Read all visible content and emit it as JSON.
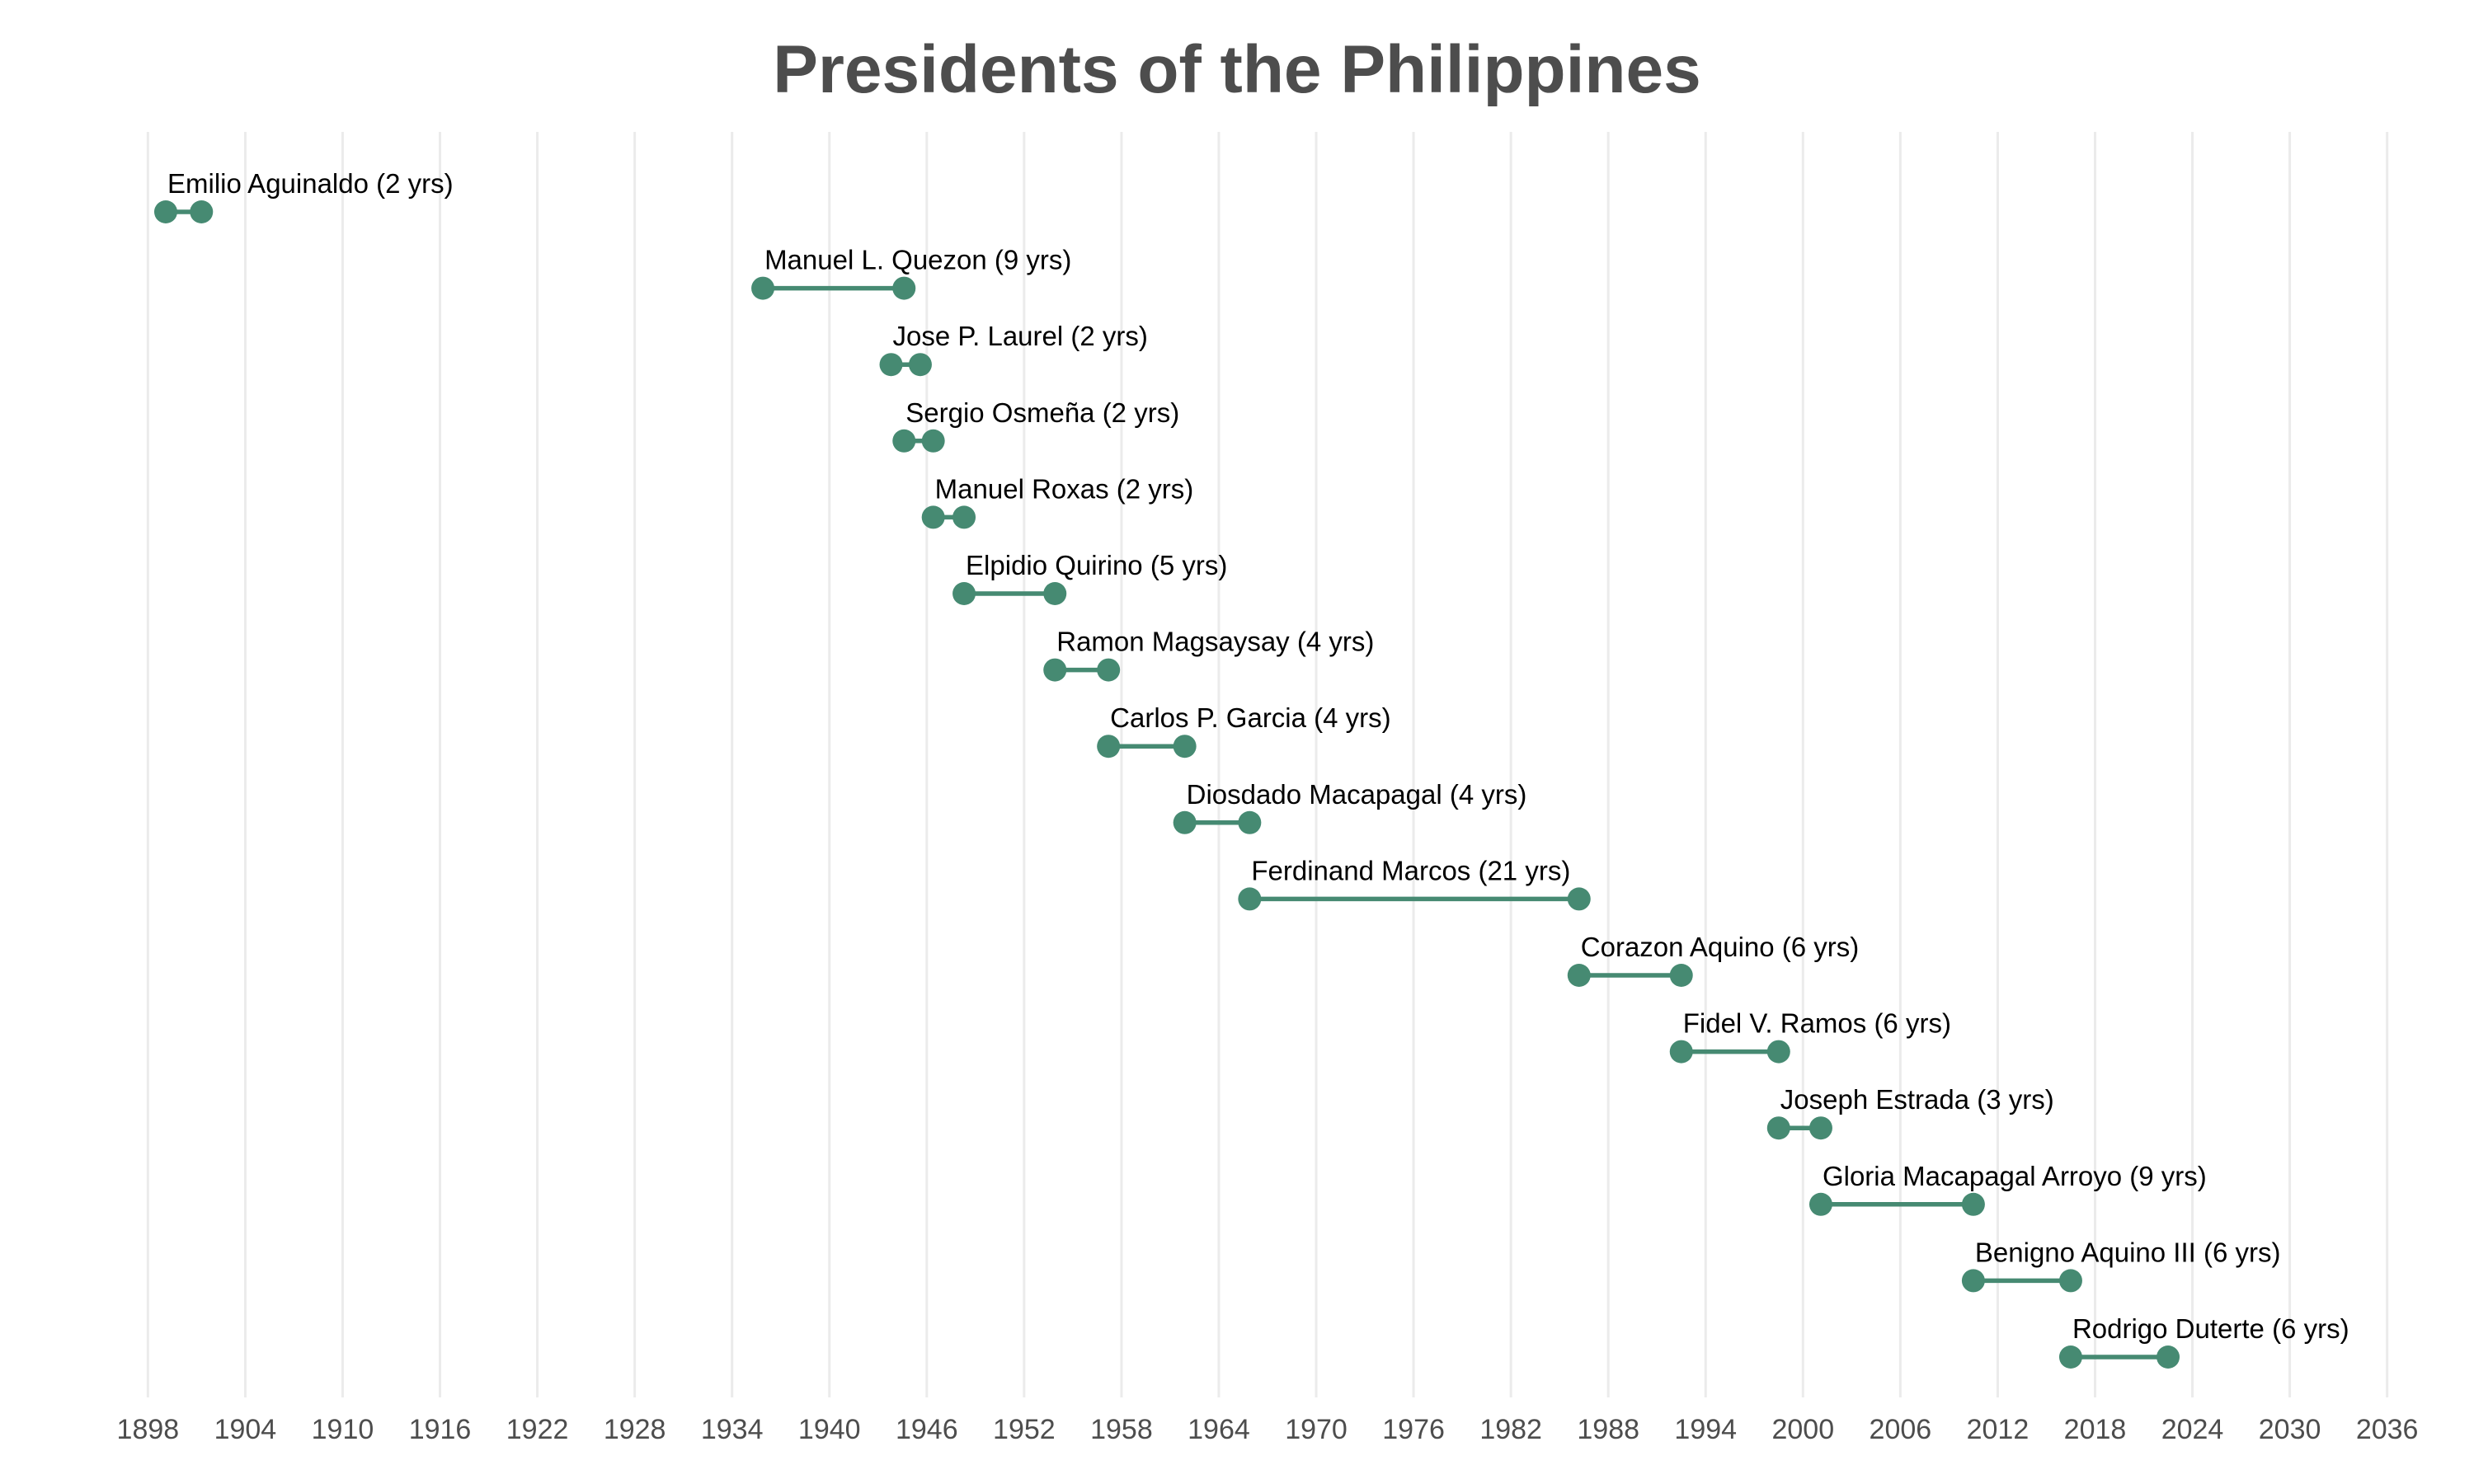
{
  "chart_data": {
    "type": "dumbbell",
    "title": "Presidents of the Philippines",
    "xlabel": "",
    "ylabel": "",
    "xlim": [
      1896,
      2038
    ],
    "x_ticks": [
      "1898",
      "1904",
      "1910",
      "1916",
      "1922",
      "1928",
      "1934",
      "1940",
      "1946",
      "1952",
      "1958",
      "1964",
      "1970",
      "1976",
      "1982",
      "1988",
      "1994",
      "2000",
      "2006",
      "2012",
      "2018",
      "2024",
      "2030",
      "2036"
    ],
    "grid": "vertical",
    "legend": "none",
    "color": "#468a72",
    "presidents": [
      {
        "label": "Emilio Aguinaldo (2 yrs)",
        "start": 1899.1,
        "end": 1901.3
      },
      {
        "label": "Manuel L. Quezon (9 yrs)",
        "start": 1935.9,
        "end": 1944.6
      },
      {
        "label": "Jose P. Laurel (2 yrs)",
        "start": 1943.8,
        "end": 1945.6
      },
      {
        "label": "Sergio Osmeña (2 yrs)",
        "start": 1944.6,
        "end": 1946.4
      },
      {
        "label": "Manuel Roxas (2 yrs)",
        "start": 1946.4,
        "end": 1948.3
      },
      {
        "label": "Elpidio Quirino (5 yrs)",
        "start": 1948.3,
        "end": 1953.9
      },
      {
        "label": "Ramon Magsaysay (4 yrs)",
        "start": 1953.9,
        "end": 1957.2
      },
      {
        "label": "Carlos P. Garcia (4 yrs)",
        "start": 1957.2,
        "end": 1961.9
      },
      {
        "label": "Diosdado Macapagal (4 yrs)",
        "start": 1961.9,
        "end": 1965.9
      },
      {
        "label": "Ferdinand Marcos (21 yrs)",
        "start": 1965.9,
        "end": 1986.2
      },
      {
        "label": "Corazon Aquino (6 yrs)",
        "start": 1986.2,
        "end": 1992.5
      },
      {
        "label": "Fidel V. Ramos (6 yrs)",
        "start": 1992.5,
        "end": 1998.5
      },
      {
        "label": "Joseph Estrada (3 yrs)",
        "start": 1998.5,
        "end": 2001.1
      },
      {
        "label": "Gloria Macapagal Arroyo (9 yrs)",
        "start": 2001.1,
        "end": 2010.5
      },
      {
        "label": "Benigno Aquino III (6 yrs)",
        "start": 2010.5,
        "end": 2016.5
      },
      {
        "label": "Rodrigo Duterte (6 yrs)",
        "start": 2016.5,
        "end": 2022.5
      }
    ]
  }
}
